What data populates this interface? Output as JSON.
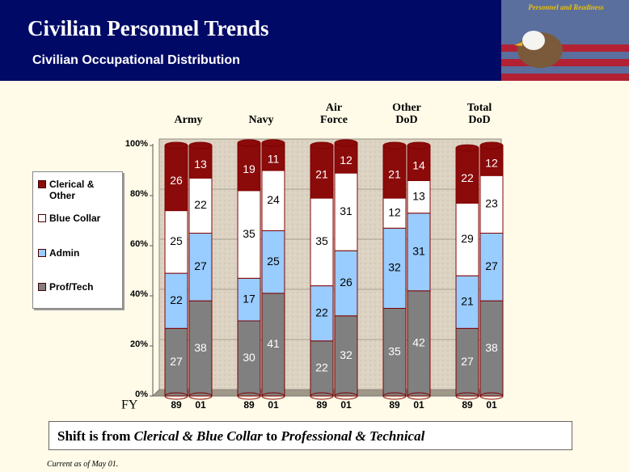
{
  "header": {
    "title": "Civilian Personnel Trends",
    "subtitle": "Civilian Occupational Distribution",
    "badge": "Personnel and Readiness"
  },
  "chart_data": {
    "type": "bar",
    "stacked": true,
    "groups": [
      {
        "name": "Army",
        "categories": [
          "89",
          "01"
        ]
      },
      {
        "name": "Navy",
        "categories": [
          "89",
          "01"
        ]
      },
      {
        "name": "Air Force",
        "categories": [
          "89",
          "01"
        ]
      },
      {
        "name": "Other DoD",
        "categories": [
          "89",
          "01"
        ]
      },
      {
        "name": "Total DoD",
        "categories": [
          "89",
          "01"
        ]
      }
    ],
    "x_label": "FY",
    "series": [
      {
        "name": "Prof/Tech",
        "color": "#808080",
        "values": [
          27,
          38,
          30,
          41,
          22,
          32,
          35,
          42,
          27,
          38
        ]
      },
      {
        "name": "Admin",
        "color": "#99ccff",
        "values": [
          22,
          27,
          17,
          25,
          22,
          26,
          32,
          31,
          21,
          27
        ]
      },
      {
        "name": "Blue Collar",
        "color": "#ffffff",
        "values": [
          25,
          22,
          35,
          24,
          35,
          31,
          12,
          13,
          29,
          23
        ]
      },
      {
        "name": "Clerical & Other",
        "color": "#8b0a0a",
        "values": [
          26,
          13,
          19,
          11,
          21,
          12,
          21,
          14,
          22,
          12
        ]
      }
    ],
    "ylim": [
      0,
      100
    ],
    "yticks": [
      {
        "value": 0,
        "label": "0%"
      },
      {
        "value": 20,
        "label": "20%"
      },
      {
        "value": 40,
        "label": "40%"
      },
      {
        "value": 60,
        "label": "60%"
      },
      {
        "value": 80,
        "label": "80%"
      },
      {
        "value": 100,
        "label": "100%"
      }
    ],
    "grid": true,
    "legend": "left"
  },
  "footer": {
    "callout": [
      {
        "text": "Shift is from ",
        "italic": false
      },
      {
        "text": "Clerical & Blue Collar",
        "italic": true
      },
      {
        "text": " to ",
        "italic": false
      },
      {
        "text": "Professional & Technical",
        "italic": true
      }
    ],
    "note": "Current as of May 01."
  }
}
